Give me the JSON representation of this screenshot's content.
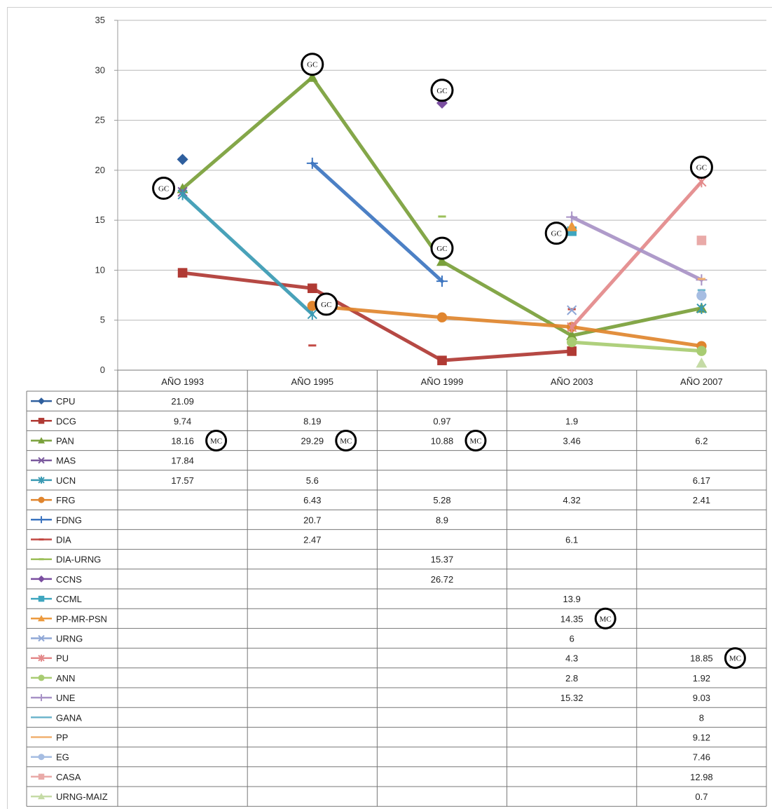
{
  "chart_data": {
    "type": "line",
    "categories": [
      "AÑO 1993",
      "AÑO 1995",
      "AÑO 1999",
      "AÑO 2003",
      "AÑO 2007"
    ],
    "ylim": [
      0,
      35
    ],
    "yticks": [
      "0",
      "5",
      "10",
      "15",
      "20",
      "25",
      "30",
      "35"
    ],
    "grid": true,
    "legend": "table-left",
    "series": [
      {
        "name": "CPU",
        "color": "#2f5f9e",
        "marker": "diamond",
        "values": [
          21.09,
          null,
          null,
          null,
          null
        ],
        "labels": [
          "21.09",
          "",
          "",
          "",
          ""
        ]
      },
      {
        "name": "DCG",
        "color": "#b03a34",
        "marker": "square",
        "values": [
          9.74,
          8.19,
          0.97,
          1.9,
          null
        ],
        "labels": [
          "9.74",
          "8.19",
          "0.97",
          "1.9",
          ""
        ]
      },
      {
        "name": "PAN",
        "color": "#79a03a",
        "marker": "triangle",
        "values": [
          18.16,
          29.29,
          10.88,
          3.46,
          6.2
        ],
        "labels": [
          "18.16",
          "29.29",
          "10.88",
          "3.46",
          "6.2"
        ]
      },
      {
        "name": "MAS",
        "color": "#7b5a9e",
        "marker": "x",
        "values": [
          17.84,
          null,
          null,
          null,
          null
        ],
        "labels": [
          "17.84",
          "",
          "",
          "",
          ""
        ]
      },
      {
        "name": "UCN",
        "color": "#3a9ab3",
        "marker": "star",
        "values": [
          17.57,
          5.6,
          null,
          null,
          6.17
        ],
        "labels": [
          "17.57",
          "5.6",
          "",
          "",
          "6.17"
        ]
      },
      {
        "name": "FRG",
        "color": "#e0852e",
        "marker": "circle",
        "values": [
          null,
          6.43,
          5.28,
          4.32,
          2.41
        ],
        "labels": [
          "",
          "6.43",
          "5.28",
          "4.32",
          "2.41"
        ]
      },
      {
        "name": "FDNG",
        "color": "#3d75c0",
        "marker": "plus",
        "values": [
          null,
          20.7,
          8.9,
          null,
          null
        ],
        "labels": [
          "",
          "20.7",
          "8.9",
          "",
          ""
        ]
      },
      {
        "name": "DIA",
        "color": "#c24a44",
        "marker": "dash",
        "values": [
          null,
          2.47,
          null,
          6.1,
          null
        ],
        "labels": [
          "",
          "2.47",
          "",
          "6.1",
          ""
        ]
      },
      {
        "name": "DIA-URNG",
        "color": "#9cbf5a",
        "marker": "dash",
        "values": [
          null,
          null,
          15.37,
          null,
          null
        ],
        "labels": [
          "",
          "",
          "15.37",
          "",
          ""
        ]
      },
      {
        "name": "CCNS",
        "color": "#7a4ea0",
        "marker": "diamond",
        "values": [
          null,
          null,
          26.72,
          null,
          null
        ],
        "labels": [
          "",
          "",
          "26.72",
          "",
          ""
        ]
      },
      {
        "name": "CCML",
        "color": "#3fa6bf",
        "marker": "square",
        "values": [
          null,
          null,
          null,
          13.9,
          null
        ],
        "labels": [
          "",
          "",
          "",
          "13.9",
          ""
        ]
      },
      {
        "name": "PP-MR-PSN",
        "color": "#ec9a3e",
        "marker": "triangle",
        "values": [
          null,
          null,
          null,
          14.35,
          null
        ],
        "labels": [
          "",
          "",
          "",
          "14.35",
          ""
        ]
      },
      {
        "name": "URNG",
        "color": "#8fa7d6",
        "marker": "x",
        "values": [
          null,
          null,
          null,
          6.0,
          null
        ],
        "labels": [
          "",
          "",
          "",
          "6",
          ""
        ]
      },
      {
        "name": "PU",
        "color": "#e3898a",
        "marker": "star",
        "values": [
          null,
          null,
          null,
          4.3,
          18.85
        ],
        "labels": [
          "",
          "",
          "",
          "4.3",
          "18.85"
        ]
      },
      {
        "name": "ANN",
        "color": "#a8cc72",
        "marker": "circle",
        "values": [
          null,
          null,
          null,
          2.8,
          1.92
        ],
        "labels": [
          "",
          "",
          "",
          "2.8",
          "1.92"
        ]
      },
      {
        "name": "UNE",
        "color": "#a892c6",
        "marker": "plus",
        "values": [
          null,
          null,
          null,
          15.32,
          9.03
        ],
        "labels": [
          "",
          "",
          "",
          "15.32",
          "9.03"
        ]
      },
      {
        "name": "GANA",
        "color": "#6fb6cc",
        "marker": "none",
        "values": [
          null,
          null,
          null,
          null,
          8.0
        ],
        "labels": [
          "",
          "",
          "",
          "",
          "8"
        ]
      },
      {
        "name": "PP",
        "color": "#f1b070",
        "marker": "none",
        "values": [
          null,
          null,
          null,
          null,
          9.12
        ],
        "labels": [
          "",
          "",
          "",
          "",
          "9.12"
        ]
      },
      {
        "name": "EG",
        "color": "#a6bde2",
        "marker": "circle",
        "values": [
          null,
          null,
          null,
          null,
          7.46
        ],
        "labels": [
          "",
          "",
          "",
          "",
          "7.46"
        ]
      },
      {
        "name": "CASA",
        "color": "#e9aaa8",
        "marker": "square",
        "values": [
          null,
          null,
          null,
          null,
          12.98
        ],
        "labels": [
          "",
          "",
          "",
          "",
          "12.98"
        ]
      },
      {
        "name": "URNG-MAIZ",
        "color": "#c5dba6",
        "marker": "triangle",
        "values": [
          null,
          null,
          null,
          null,
          0.7
        ],
        "labels": [
          "",
          "",
          "",
          "",
          "0.7"
        ]
      }
    ],
    "annotations": {
      "chart_circles": [
        {
          "text": "GC",
          "cat": 0,
          "value": 18.2
        },
        {
          "text": "GC",
          "cat": 1,
          "value": 30.6
        },
        {
          "text": "GC",
          "cat": 2,
          "value": 28.0
        },
        {
          "text": "GC",
          "cat": 2,
          "value": 12.2
        },
        {
          "text": "GC",
          "cat": 1,
          "value": 6.6
        },
        {
          "text": "GC",
          "cat": 3,
          "value": 13.7
        },
        {
          "text": "GC",
          "cat": 4,
          "value": 20.3
        }
      ],
      "table_circles": [
        {
          "text": "MC",
          "series": "PAN",
          "cat": 0
        },
        {
          "text": "MC",
          "series": "PAN",
          "cat": 1
        },
        {
          "text": "MC",
          "series": "PAN",
          "cat": 2
        },
        {
          "text": "MC",
          "series": "PP-MR-PSN",
          "cat": 3
        },
        {
          "text": "MC",
          "series": "PU",
          "cat": 4
        }
      ]
    }
  }
}
